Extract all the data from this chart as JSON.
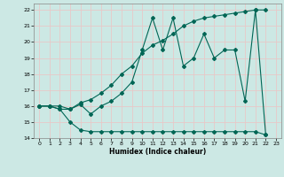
{
  "title": "",
  "xlabel": "Humidex (Indice chaleur)",
  "xlim": [
    -0.5,
    23.5
  ],
  "ylim": [
    14,
    22.4
  ],
  "xticks": [
    0,
    1,
    2,
    3,
    4,
    5,
    6,
    7,
    8,
    9,
    10,
    11,
    12,
    13,
    14,
    15,
    16,
    17,
    18,
    19,
    20,
    21,
    22,
    23
  ],
  "yticks": [
    14,
    15,
    16,
    17,
    18,
    19,
    20,
    21,
    22
  ],
  "bg_color": "#cce8e4",
  "grid_color": "#e8c8c8",
  "line_color": "#006655",
  "line1_x": [
    0,
    1,
    2,
    3,
    4,
    5,
    6,
    7,
    8,
    9,
    10,
    11,
    12,
    13,
    14,
    15,
    16,
    17,
    18,
    19,
    20,
    21,
    22
  ],
  "line1_y": [
    16,
    16,
    15.8,
    15,
    14.5,
    14.4,
    14.4,
    14.4,
    14.4,
    14.4,
    14.4,
    14.4,
    14.4,
    14.4,
    14.4,
    14.4,
    14.4,
    14.4,
    14.4,
    14.4,
    14.4,
    14.4,
    14.2
  ],
  "line2_x": [
    0,
    1,
    2,
    3,
    4,
    5,
    6,
    7,
    8,
    9,
    10,
    11,
    12,
    13,
    14,
    15,
    16,
    17,
    18,
    19,
    20,
    21,
    22
  ],
  "line2_y": [
    16,
    16,
    16,
    15.8,
    16.2,
    16.4,
    16.8,
    17.3,
    18.0,
    18.5,
    19.3,
    19.8,
    20.1,
    20.5,
    21.0,
    21.3,
    21.5,
    21.6,
    21.7,
    21.8,
    21.9,
    22.0,
    22.0
  ],
  "line3_x": [
    0,
    1,
    2,
    3,
    4,
    5,
    6,
    7,
    8,
    9,
    10,
    11,
    12,
    13,
    14,
    15,
    16,
    17,
    18,
    19,
    20,
    21,
    22
  ],
  "line3_y": [
    16,
    16,
    15.8,
    15.8,
    16.1,
    15.5,
    16.0,
    16.3,
    16.8,
    17.5,
    19.5,
    21.5,
    19.5,
    21.5,
    18.5,
    19.0,
    20.5,
    19.0,
    19.5,
    19.5,
    16.3,
    22.0,
    14.2
  ]
}
